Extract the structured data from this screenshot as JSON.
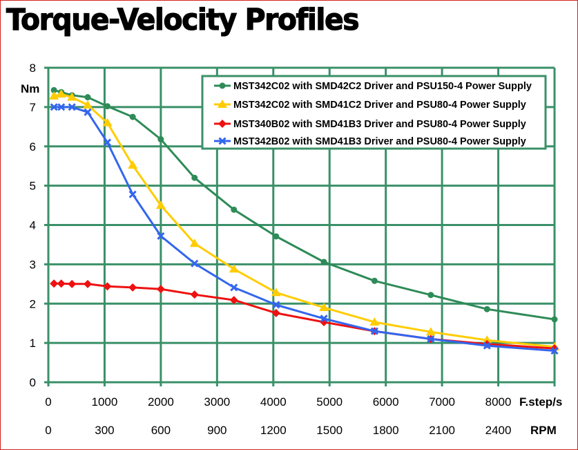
{
  "page": {
    "title": "Torque-Velocity Profiles",
    "colors": {
      "frame": "#d0201c",
      "grid": "#3a9068"
    }
  },
  "chart_data": {
    "type": "line",
    "title": "Torque-Velocity Profiles",
    "xlabel": "F.step/s",
    "xlabel_secondary": "RPM",
    "ylabel": "Nm",
    "xlim": [
      0,
      9000
    ],
    "ylim": [
      0,
      8
    ],
    "grid": true,
    "legend_position": "top-right",
    "x_ticks": [
      0,
      1000,
      2000,
      3000,
      4000,
      5000,
      6000,
      7000,
      8000
    ],
    "x_tick_labels": [
      "0",
      "1000",
      "2000",
      "3000",
      "4000",
      "5000",
      "6000",
      "7000",
      "8000"
    ],
    "x_secondary_tick_labels": [
      "0",
      "300",
      "600",
      "900",
      "1200",
      "1500",
      "1800",
      "2100",
      "2400"
    ],
    "y_ticks": [
      0,
      1,
      2,
      3,
      4,
      5,
      6,
      7,
      8
    ],
    "y_tick_labels": [
      "0",
      "1",
      "2",
      "3",
      "4",
      "5",
      "6",
      "7",
      "8"
    ],
    "x": [
      100,
      230,
      420,
      700,
      1050,
      1500,
      2000,
      2600,
      3300,
      4050,
      4900,
      5800,
      6800,
      7800,
      9000
    ],
    "series": [
      {
        "name": "MST342C02 with SMD42C2 Driver and PSU150-4 Power Supply",
        "color": "#2e8b57",
        "marker": "circle",
        "values": [
          7.43,
          7.38,
          7.3,
          7.25,
          7.02,
          6.75,
          6.18,
          5.2,
          4.39,
          3.71,
          3.06,
          2.58,
          2.22,
          1.86,
          1.6
        ]
      },
      {
        "name": "MST342C02 with SMD41C2 Driver and PSU80-4 Power Supply",
        "color": "#ffcc00",
        "marker": "triangle",
        "values": [
          7.28,
          7.33,
          7.25,
          7.05,
          6.6,
          5.52,
          4.5,
          3.53,
          2.88,
          2.28,
          1.9,
          1.53,
          1.28,
          1.07,
          0.9
        ]
      },
      {
        "name": "MST340B02 with SMD41B3 Driver and PSU80-4 Power Supply",
        "color": "#ee1111",
        "marker": "diamond",
        "values": [
          2.51,
          2.51,
          2.5,
          2.5,
          2.44,
          2.41,
          2.37,
          2.23,
          2.09,
          1.76,
          1.53,
          1.3,
          1.1,
          0.97,
          0.86
        ]
      },
      {
        "name": "MST342B02 with SMD41B3 Driver and PSU80-4 Power Supply",
        "color": "#3366ee",
        "marker": "x",
        "values": [
          7.0,
          7.0,
          7.0,
          6.87,
          6.1,
          4.78,
          3.72,
          3.02,
          2.41,
          1.97,
          1.62,
          1.3,
          1.1,
          0.93,
          0.8
        ]
      }
    ]
  }
}
